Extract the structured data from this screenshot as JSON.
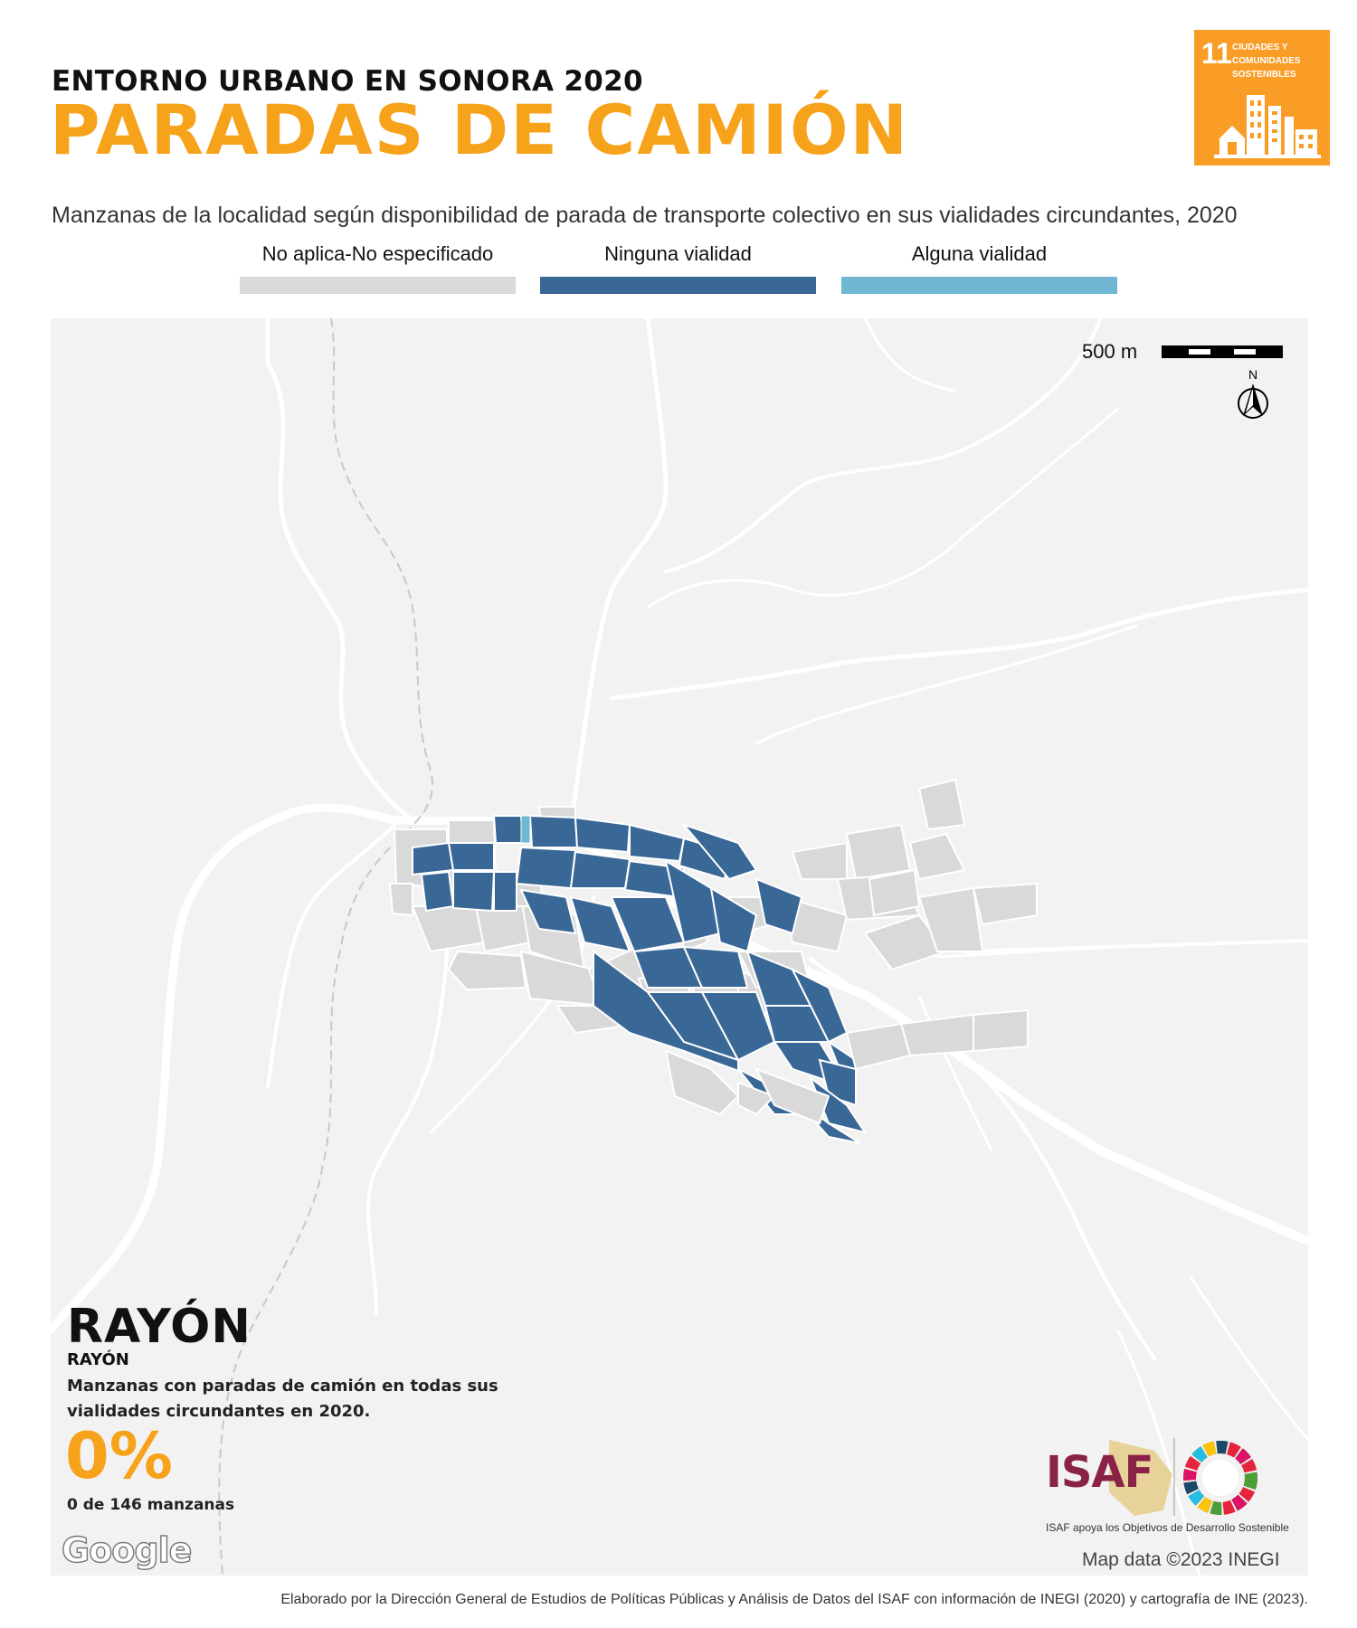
{
  "header": {
    "kicker": "ENTORNO URBANO EN SONORA 2020",
    "title": "PARADAS DE CAMIÓN",
    "subtitle": "Manzanas de la localidad según disponibilidad de parada de transporte colectivo en sus vialidades circundantes, 2020"
  },
  "sdg_badge": {
    "number": "11",
    "text": "CIUDADES Y COMUNIDADES SOSTENIBLES",
    "color": "#f99d26"
  },
  "legend": [
    {
      "label": "No aplica-No especificado",
      "color": "#d9d9d9"
    },
    {
      "label": "Ninguna vialidad",
      "color": "#3a6896"
    },
    {
      "label": "Alguna vialidad",
      "color": "#6fb7d3"
    }
  ],
  "map": {
    "scale_label": "500 m",
    "north_label": "N",
    "locality_name": "RAYÓN",
    "municipality_name": "RAYÓN",
    "stat_description": "Manzanas con paradas de camión en todas sus vialidades circundantes en 2020.",
    "stat_percent": "0%",
    "stat_count": "0 de 146 manzanas",
    "google_label": "Google",
    "map_data_label": "Map data ©2023 INEGI"
  },
  "logos": {
    "isaf_name": "ISAF",
    "isaf_tagline": "ISAF apoya los Objetivos de Desarrollo Sostenible"
  },
  "footer": "Elaborado por la Dirección General de Estudios de Políticas Públicas y Análisis de Datos del ISAF con información de INEGI (2020) y cartografía de INE (2023)."
}
